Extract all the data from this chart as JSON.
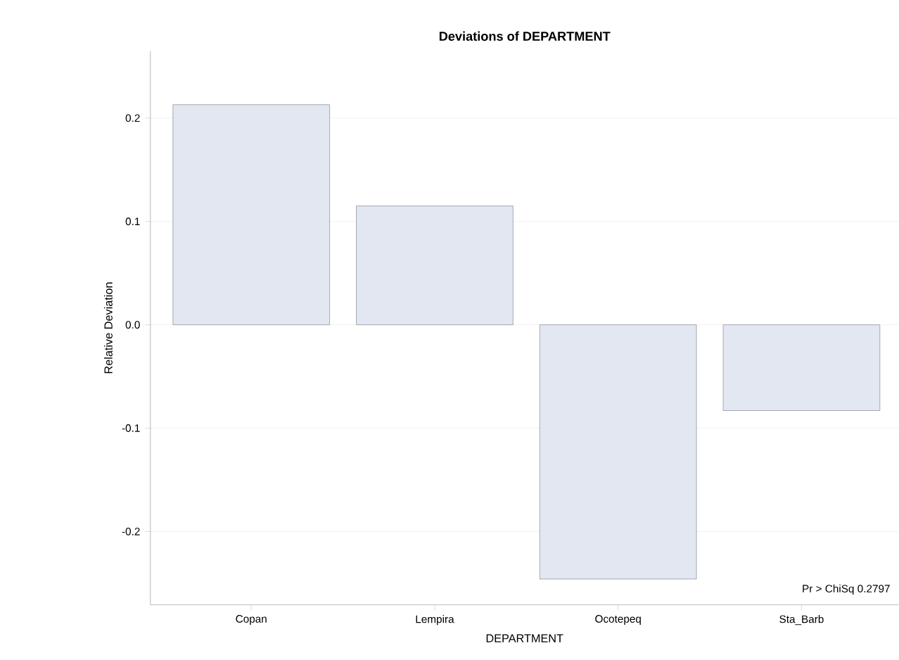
{
  "chart_data": {
    "type": "bar",
    "title": "Deviations of DEPARTMENT",
    "xlabel": "DEPARTMENT",
    "ylabel": "Relative Deviation",
    "categories": [
      "Copan",
      "Lempira",
      "Ocotepeq",
      "Sta_Barb"
    ],
    "values": [
      0.213,
      0.115,
      -0.246,
      -0.083
    ],
    "color": "#e2e7f1",
    "ylim": [
      -0.271,
      0.265
    ],
    "yticks": [
      {
        "value": -0.2,
        "label": "-0.2"
      },
      {
        "value": -0.1,
        "label": "-0.1"
      },
      {
        "value": 0,
        "label": "0.0"
      },
      {
        "value": 0.1,
        "label": "0.1"
      },
      {
        "value": 0.2,
        "label": "0.2"
      }
    ],
    "grid": "y",
    "annotations": [
      "Pr > ChiSq  0.2797"
    ]
  }
}
